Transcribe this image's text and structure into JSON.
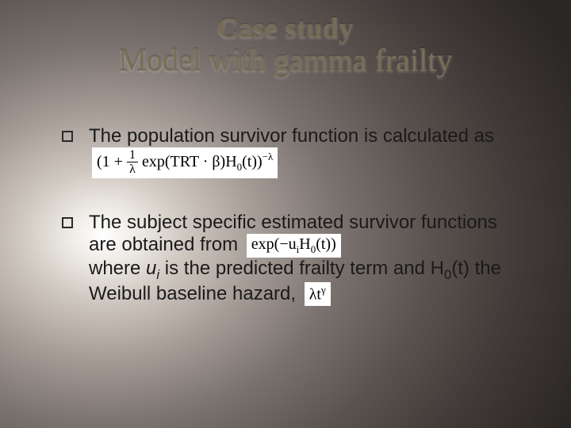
{
  "slide": {
    "background": {
      "type": "radial-gradient",
      "center": "18% 55%",
      "stops": [
        "#ffffff",
        "#f0ede8",
        "#cfc8c0",
        "#a59c96",
        "#7a726e",
        "#5a524e",
        "#3f3937",
        "#2c2826"
      ]
    },
    "title": {
      "line1": "Case study",
      "line2": "Model with gamma frailty",
      "font_family": "Georgia",
      "color": "#766b56",
      "line1_fontsize": 36,
      "line2_fontsize": 40,
      "line1_weight": "bold",
      "line2_weight": "normal"
    },
    "body": {
      "font_family": "Arial",
      "fontsize": 24,
      "color": "#1a1a1a",
      "bullet_style": "hollow-square",
      "items": [
        {
          "text_before": "The population survivor function is calculated as",
          "formula_tex": "\\left(1 + \\frac{1}{\\lambda}\\exp(TRT\\cdot\\beta)H_0(t)\\right)^{-\\lambda}",
          "formula_parts": {
            "open": "(1 +",
            "frac_num": "1",
            "frac_den": "λ",
            "mid": "exp(TRT · β)H",
            "mid_sub": "0",
            "mid_tail": "(t))",
            "exp": "−λ"
          }
        },
        {
          "text_before": "The subject specific estimated survivor functions are obtained from",
          "formula_tex": "\\exp(-u_i H_0(t))",
          "formula_parts": {
            "lead": "exp(−u",
            "lead_sub": "i",
            "mid2": "H",
            "mid2_sub": "0",
            "tail": "(t))"
          },
          "continuation_pre": " where ",
          "continuation_var": "u",
          "continuation_var_sub": "i",
          "continuation_mid": " is the predicted frailty term and H",
          "continuation_h_sub": "0",
          "continuation_post": "(t) the Weibull baseline hazard,",
          "trailing_formula_tex": "\\lambda t^{\\gamma}",
          "trailing_parts": {
            "a": "λt",
            "b": "γ"
          }
        }
      ]
    }
  }
}
